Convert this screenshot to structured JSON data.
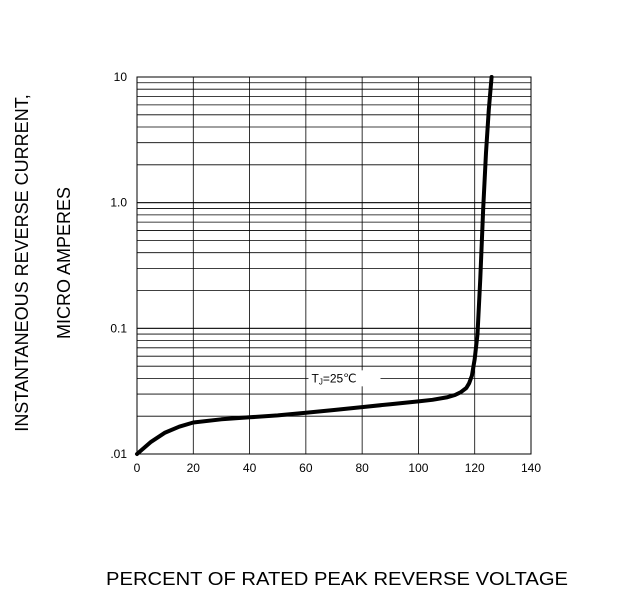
{
  "chart_data": {
    "type": "line",
    "title": "",
    "xlabel": "PERCENT OF RATED PEAK REVERSE VOLTAGE",
    "ylabel": [
      "INSTANTANEOUS REVERSE CURRENT,",
      "MICRO AMPERES"
    ],
    "xlim": [
      0,
      140
    ],
    "ylim": [
      0.01,
      10
    ],
    "y_scale": "log",
    "grid": true,
    "x_ticks": [
      0,
      20,
      40,
      60,
      80,
      100,
      120,
      140
    ],
    "x_tick_labels": [
      "0",
      "20",
      "40",
      "60",
      "80",
      "100",
      "120",
      "140"
    ],
    "y_ticks": [
      0.01,
      0.1,
      1.0,
      10
    ],
    "y_tick_labels": [
      ".01",
      "0.1",
      "1.0",
      "10"
    ],
    "annotation": {
      "text": "TJ=25℃",
      "x": 62,
      "y": 0.04
    },
    "series": [
      {
        "x": [
          0,
          5,
          10,
          15,
          20,
          30,
          40,
          50,
          60,
          70,
          80,
          90,
          100,
          105,
          110,
          113,
          115,
          117,
          118,
          119,
          120,
          121,
          122,
          123,
          124,
          125,
          126
        ],
        "y": [
          0.01,
          0.0125,
          0.0148,
          0.0165,
          0.0178,
          0.0189,
          0.0196,
          0.0203,
          0.0213,
          0.0224,
          0.0236,
          0.0249,
          0.0262,
          0.027,
          0.0282,
          0.0295,
          0.031,
          0.0335,
          0.0365,
          0.042,
          0.057,
          0.09,
          0.25,
          0.9,
          2.5,
          5.5,
          10
        ]
      }
    ]
  }
}
